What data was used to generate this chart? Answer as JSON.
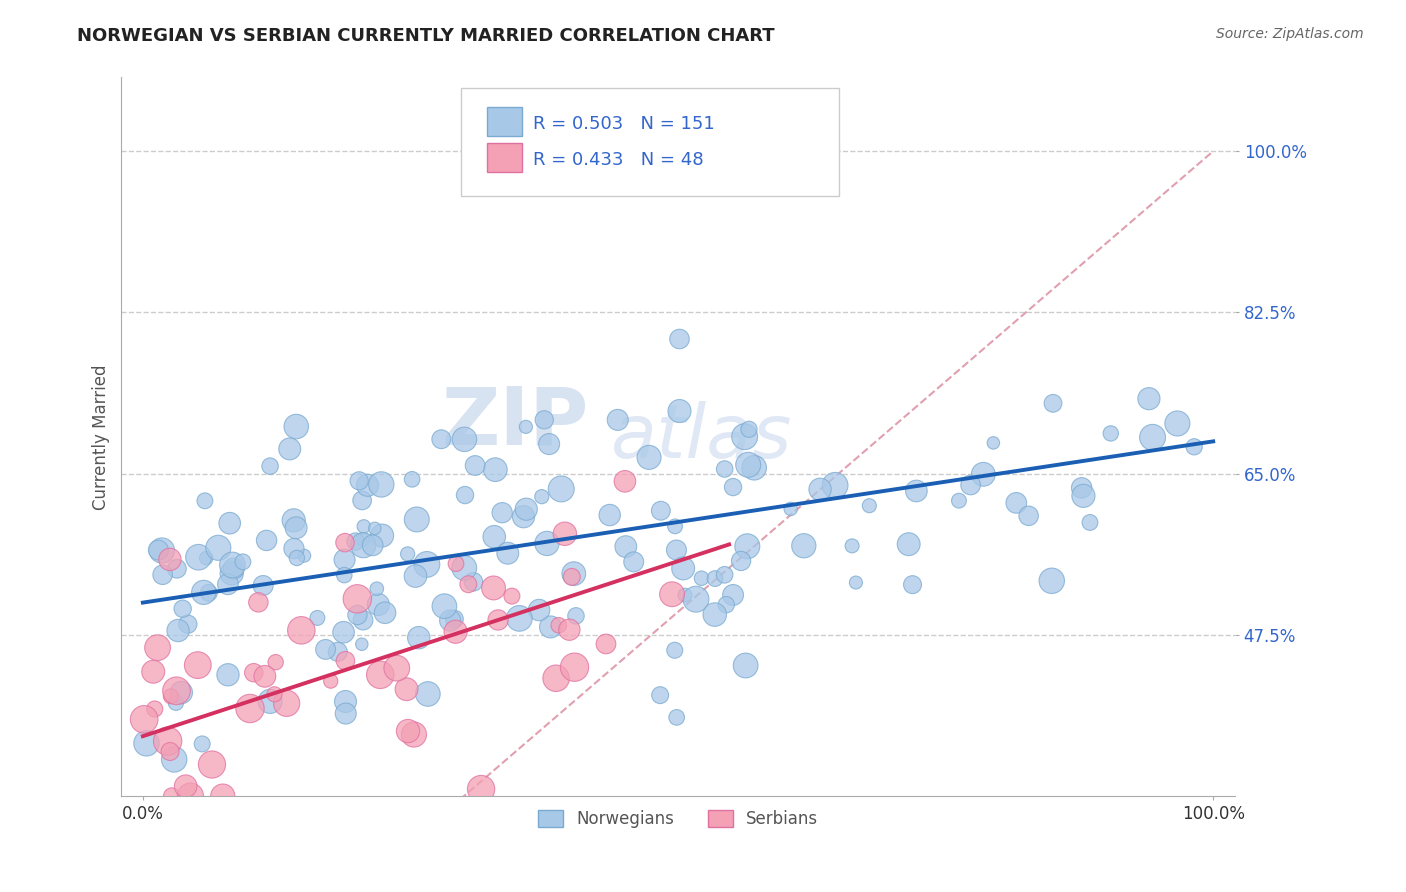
{
  "title": "NORWEGIAN VS SERBIAN CURRENTLY MARRIED CORRELATION CHART",
  "source_text": "Source: ZipAtlas.com",
  "ylabel": "Currently Married",
  "yticks": [
    0.475,
    0.65,
    0.825,
    1.0
  ],
  "ytick_labels": [
    "47.5%",
    "65.0%",
    "82.5%",
    "100.0%"
  ],
  "xtick_labels": [
    "0.0%",
    "100.0%"
  ],
  "norwegian_color": "#a8c8e8",
  "serbian_color": "#f4a0b5",
  "norwegian_edge_color": "#7aaad0",
  "serbian_edge_color": "#e070a0",
  "norwegian_line_color": "#1a5fb4",
  "serbian_line_color": "#d43060",
  "ref_line_color": "#e0a0b0",
  "legend_r_norwegian": "R = 0.503",
  "legend_n_norwegian": "N = 151",
  "legend_r_serbian": "R = 0.433",
  "legend_n_serbian": "N = 48",
  "legend_label_norwegian": "Norwegians",
  "legend_label_serbian": "Serbians",
  "watermark_zip": "ZIP",
  "watermark_atlas": "atlas",
  "title_fontsize": 13,
  "background_color": "#ffffff",
  "grid_color": "#cccccc",
  "norwegian_N": 151,
  "serbian_N": 48,
  "norwegian_intercept": 0.51,
  "norwegian_slope": 0.175,
  "serbian_intercept": 0.365,
  "serbian_slope": 0.38
}
